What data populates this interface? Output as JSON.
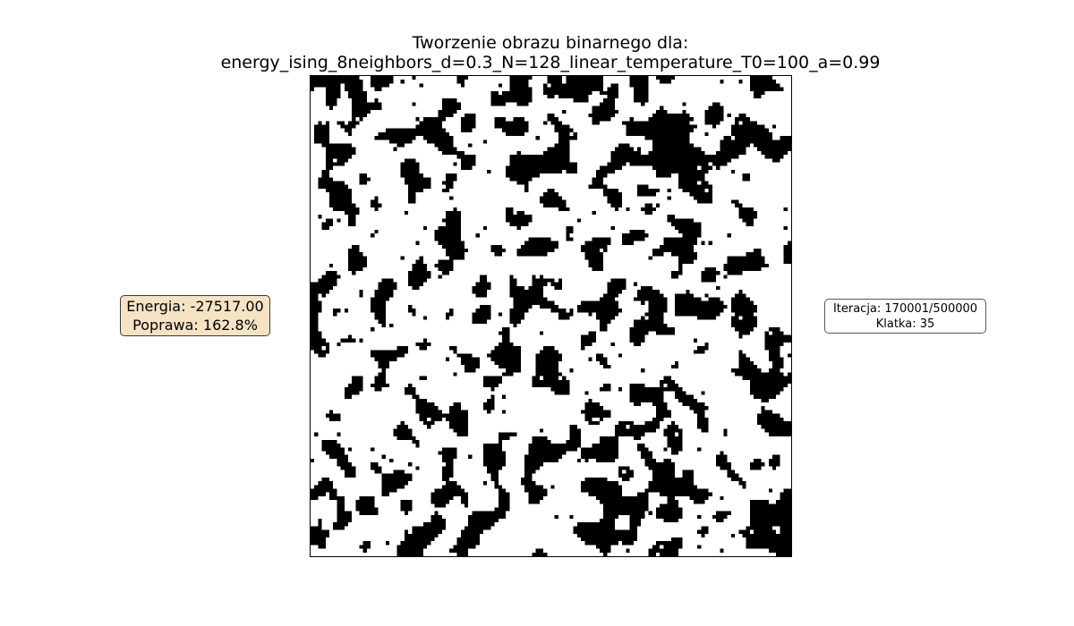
{
  "figure": {
    "title_line1": "Tworzenie obrazu binarnego dla:",
    "title_line2": "energy_ising_8neighbors_d=0.3_N=128_linear_temperature_T0=100_a=0.99"
  },
  "image": {
    "grid_size": 128,
    "black_density": 0.3,
    "on_color": "#000000",
    "off_color": "#ffffff"
  },
  "energy_box": {
    "energy_label": "Energia: -27517.00",
    "improvement_label": "Poprawa: 162.8%",
    "background": "#f5e3c3"
  },
  "iteration_box": {
    "iteration_label": "Iteracja: 170001/500000",
    "frame_label": "Klatka: 35"
  }
}
